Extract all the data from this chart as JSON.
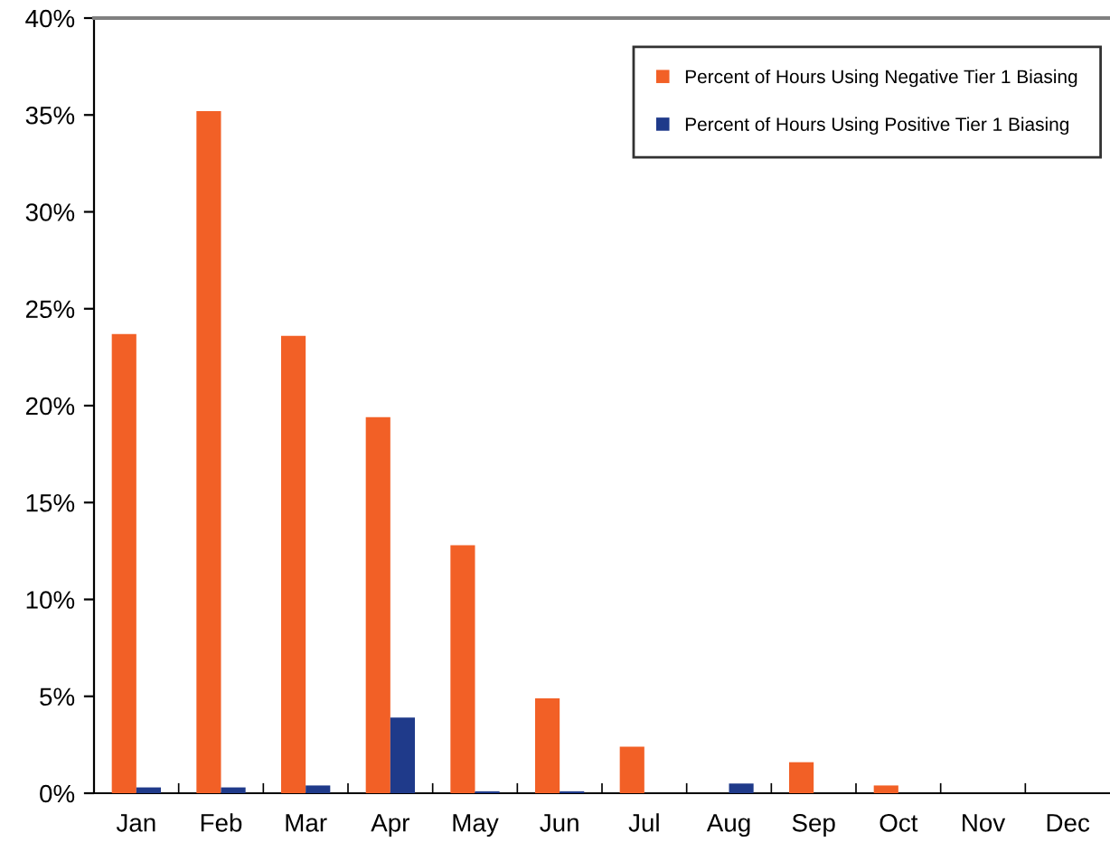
{
  "chart_data": {
    "type": "bar",
    "categories": [
      "Jan",
      "Feb",
      "Mar",
      "Apr",
      "May",
      "Jun",
      "Jul",
      "Aug",
      "Sep",
      "Oct",
      "Nov",
      "Dec"
    ],
    "series": [
      {
        "name": "Percent of Hours Using Negative Tier 1 Biasing",
        "color": "#f26026",
        "values": [
          23.7,
          35.2,
          23.6,
          19.4,
          12.8,
          4.9,
          2.4,
          0,
          1.6,
          0.4,
          0,
          0
        ]
      },
      {
        "name": "Percent of Hours Using Positive Tier 1 Biasing",
        "color": "#1f3a8a",
        "values": [
          0.3,
          0.3,
          0.4,
          3.9,
          0.1,
          0.1,
          0,
          0.5,
          0,
          0,
          0,
          0
        ]
      }
    ],
    "ylim": [
      0,
      40
    ],
    "yticks": [
      {
        "value": 0,
        "label": "0%"
      },
      {
        "value": 5,
        "label": "5%"
      },
      {
        "value": 10,
        "label": "10%"
      },
      {
        "value": 15,
        "label": "15%"
      },
      {
        "value": 20,
        "label": "20%"
      },
      {
        "value": 25,
        "label": "25%"
      },
      {
        "value": 30,
        "label": "30%"
      },
      {
        "value": 35,
        "label": "35%"
      },
      {
        "value": 40,
        "label": "40%"
      }
    ],
    "grid": false,
    "legend": "top right"
  }
}
